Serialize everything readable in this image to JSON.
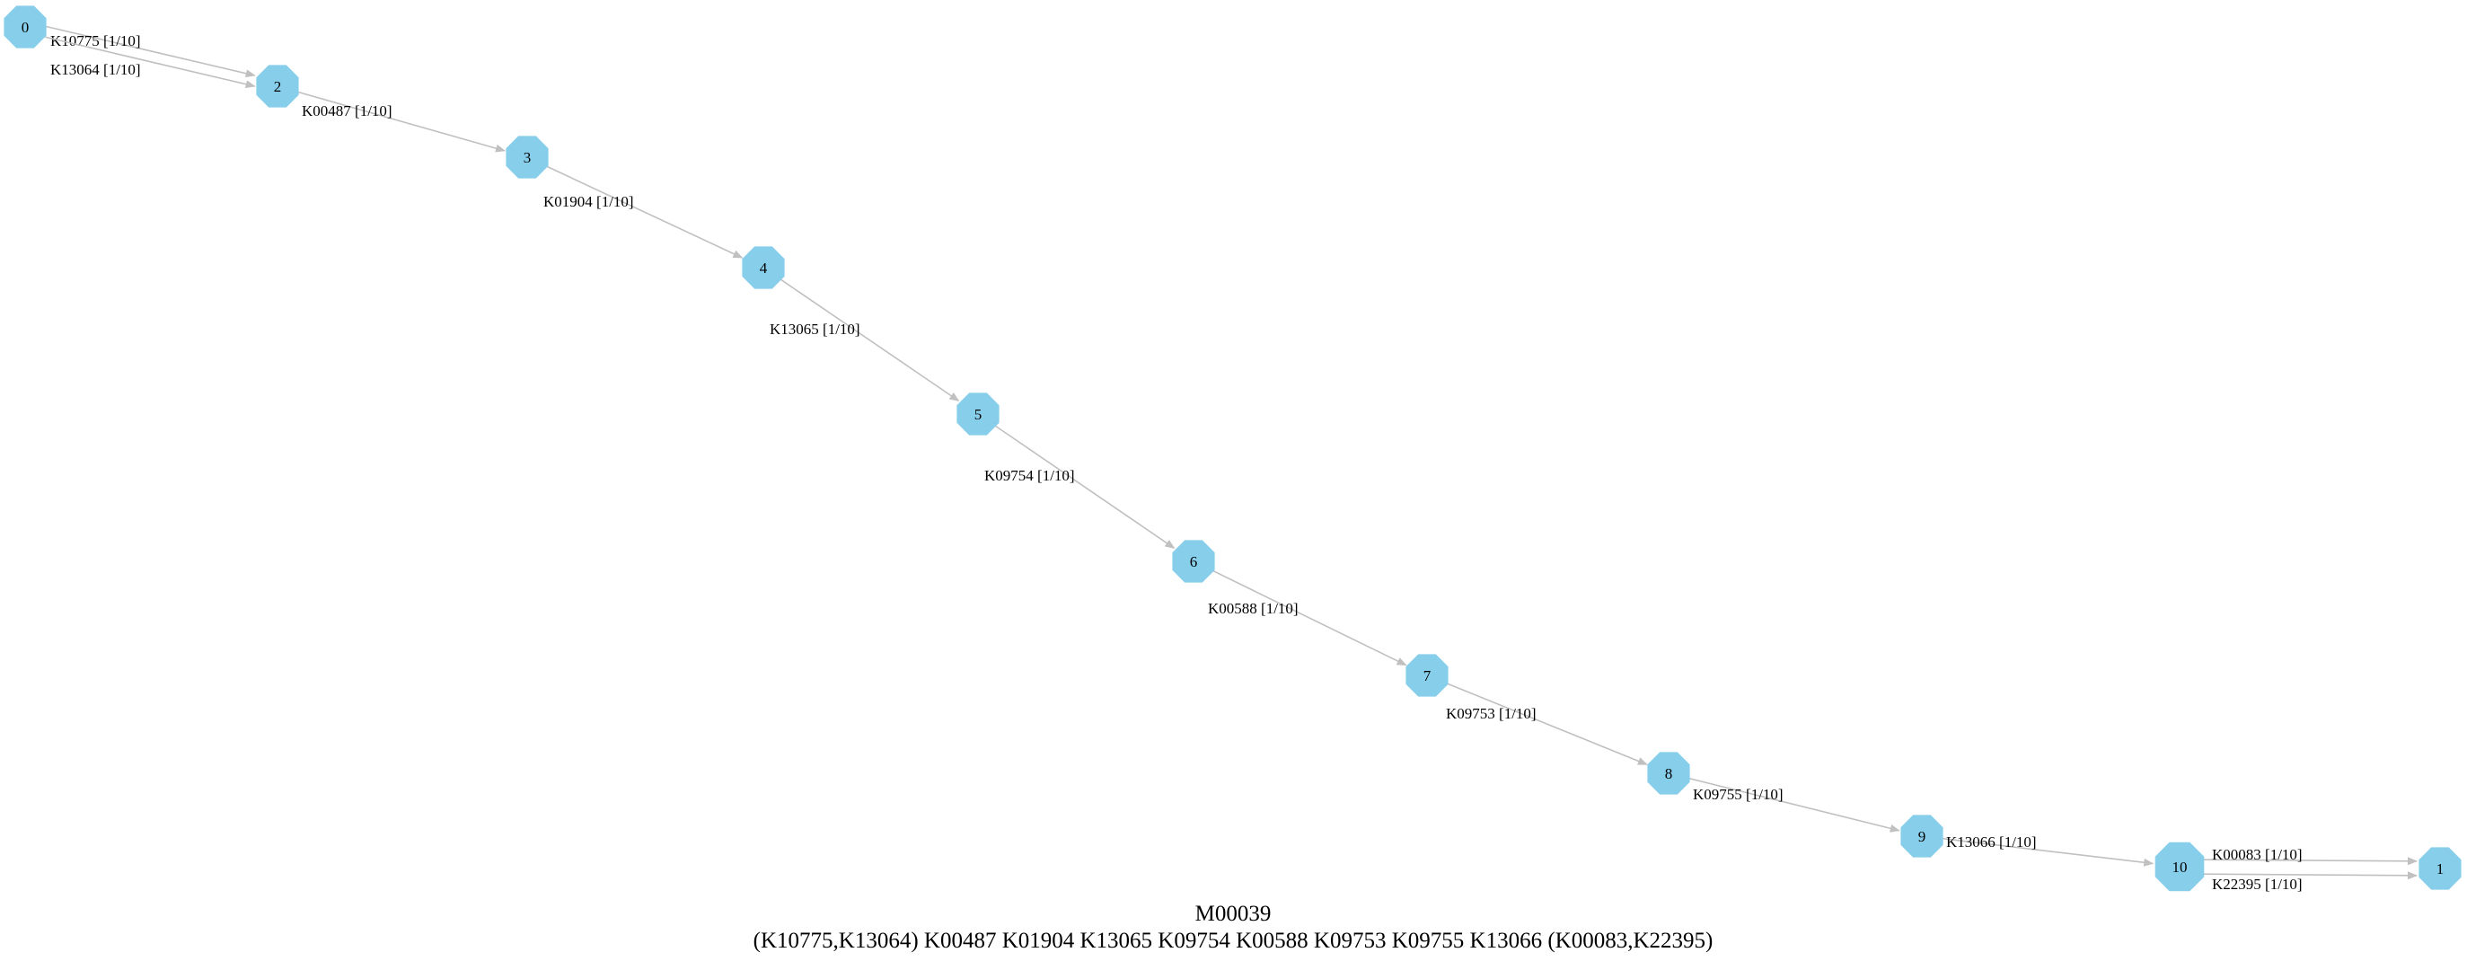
{
  "colors": {
    "node_fill": "#87ceeb",
    "edge_stroke": "#c0c0c0",
    "label_text": "#000000",
    "background": "#ffffff"
  },
  "node_shape": "octagon",
  "nodes": [
    {
      "id": "0",
      "label": "0"
    },
    {
      "id": "2",
      "label": "2"
    },
    {
      "id": "3",
      "label": "3"
    },
    {
      "id": "4",
      "label": "4"
    },
    {
      "id": "5",
      "label": "5"
    },
    {
      "id": "6",
      "label": "6"
    },
    {
      "id": "7",
      "label": "7"
    },
    {
      "id": "8",
      "label": "8"
    },
    {
      "id": "9",
      "label": "9"
    },
    {
      "id": "10",
      "label": "10"
    },
    {
      "id": "1",
      "label": "1"
    }
  ],
  "edges": [
    {
      "from": "0",
      "to": "2",
      "label": "K10775 [1/10]"
    },
    {
      "from": "0",
      "to": "2",
      "label": "K13064 [1/10]"
    },
    {
      "from": "2",
      "to": "3",
      "label": "K00487 [1/10]"
    },
    {
      "from": "3",
      "to": "4",
      "label": "K01904 [1/10]"
    },
    {
      "from": "4",
      "to": "5",
      "label": "K13065 [1/10]"
    },
    {
      "from": "5",
      "to": "6",
      "label": "K09754 [1/10]"
    },
    {
      "from": "6",
      "to": "7",
      "label": "K00588 [1/10]"
    },
    {
      "from": "7",
      "to": "8",
      "label": "K09753 [1/10]"
    },
    {
      "from": "8",
      "to": "9",
      "label": "K09755 [1/10]"
    },
    {
      "from": "9",
      "to": "10",
      "label": "K13066 [1/10]"
    },
    {
      "from": "10",
      "to": "1",
      "label": "K00083 [1/10]"
    },
    {
      "from": "10",
      "to": "1",
      "label": "K22395 [1/10]"
    }
  ],
  "caption": {
    "title": "M00039",
    "definition": "(K10775,K13064) K00487 K01904 K13065 K09754 K00588 K09753 K09755 K13066 (K00083,K22395)"
  }
}
